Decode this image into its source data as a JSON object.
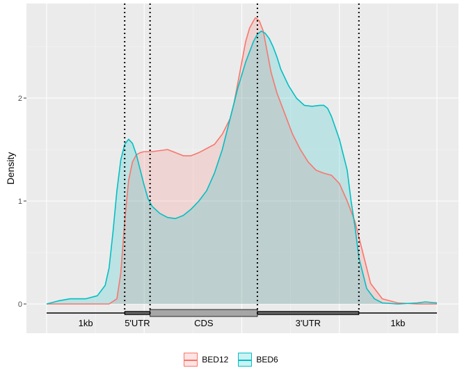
{
  "chart_data": {
    "type": "area",
    "title": "",
    "xlabel": "",
    "ylabel": "Density",
    "xlim": [
      0,
      1
    ],
    "ylim": [
      -0.12,
      2.92
    ],
    "yticks": [
      0,
      1,
      2
    ],
    "grid": true,
    "legend_position": "bottom",
    "boundaries": [
      0.2,
      0.265,
      0.54,
      0.8
    ],
    "gene_model": {
      "segments": [
        {
          "label": "1kb",
          "start": 0.0,
          "end": 0.2,
          "kind": "line"
        },
        {
          "label": "5'UTR",
          "start": 0.2,
          "end": 0.265,
          "kind": "thin-box"
        },
        {
          "label": "CDS",
          "start": 0.265,
          "end": 0.54,
          "kind": "thick-box"
        },
        {
          "label": "3'UTR",
          "start": 0.54,
          "end": 0.8,
          "kind": "thin-box"
        },
        {
          "label": "1kb",
          "start": 0.8,
          "end": 1.0,
          "kind": "line"
        }
      ]
    },
    "series": [
      {
        "name": "BED12",
        "color": "#F8766D",
        "x": [
          0.0,
          0.1,
          0.16,
          0.18,
          0.19,
          0.2,
          0.21,
          0.22,
          0.23,
          0.24,
          0.25,
          0.27,
          0.29,
          0.31,
          0.33,
          0.35,
          0.37,
          0.39,
          0.41,
          0.43,
          0.45,
          0.47,
          0.48,
          0.49,
          0.5,
          0.51,
          0.52,
          0.53,
          0.535,
          0.545,
          0.555,
          0.565,
          0.575,
          0.59,
          0.61,
          0.63,
          0.65,
          0.67,
          0.69,
          0.71,
          0.73,
          0.75,
          0.77,
          0.79,
          0.81,
          0.83,
          0.86,
          0.9,
          0.95,
          1.0
        ],
        "y": [
          0.0,
          0.0,
          0.0,
          0.05,
          0.3,
          0.8,
          1.2,
          1.38,
          1.45,
          1.47,
          1.48,
          1.48,
          1.49,
          1.5,
          1.47,
          1.44,
          1.44,
          1.47,
          1.51,
          1.55,
          1.65,
          1.8,
          1.95,
          2.15,
          2.35,
          2.55,
          2.68,
          2.75,
          2.78,
          2.75,
          2.65,
          2.45,
          2.25,
          2.05,
          1.85,
          1.65,
          1.5,
          1.38,
          1.3,
          1.27,
          1.25,
          1.17,
          1.0,
          0.8,
          0.5,
          0.2,
          0.05,
          0.01,
          0.0,
          0.0
        ]
      },
      {
        "name": "BED6",
        "color": "#00BFC4",
        "x": [
          0.0,
          0.03,
          0.06,
          0.1,
          0.13,
          0.15,
          0.16,
          0.17,
          0.18,
          0.19,
          0.2,
          0.21,
          0.22,
          0.23,
          0.24,
          0.25,
          0.26,
          0.27,
          0.29,
          0.31,
          0.33,
          0.35,
          0.37,
          0.39,
          0.41,
          0.43,
          0.45,
          0.47,
          0.49,
          0.51,
          0.53,
          0.54,
          0.55,
          0.56,
          0.57,
          0.58,
          0.59,
          0.6,
          0.62,
          0.64,
          0.66,
          0.68,
          0.7,
          0.71,
          0.72,
          0.73,
          0.75,
          0.76,
          0.77,
          0.78,
          0.79,
          0.8,
          0.82,
          0.84,
          0.86,
          0.9,
          0.95,
          0.97,
          1.0
        ],
        "y": [
          0.0,
          0.03,
          0.05,
          0.05,
          0.08,
          0.18,
          0.35,
          0.7,
          1.1,
          1.4,
          1.55,
          1.6,
          1.56,
          1.45,
          1.3,
          1.15,
          1.02,
          0.95,
          0.88,
          0.84,
          0.83,
          0.86,
          0.92,
          1.0,
          1.1,
          1.27,
          1.5,
          1.8,
          2.1,
          2.35,
          2.55,
          2.62,
          2.65,
          2.63,
          2.58,
          2.5,
          2.4,
          2.28,
          2.12,
          2.0,
          1.93,
          1.92,
          1.93,
          1.93,
          1.9,
          1.82,
          1.6,
          1.45,
          1.3,
          1.0,
          0.75,
          0.45,
          0.15,
          0.05,
          0.01,
          0.0,
          0.01,
          0.02,
          0.01
        ]
      }
    ]
  }
}
